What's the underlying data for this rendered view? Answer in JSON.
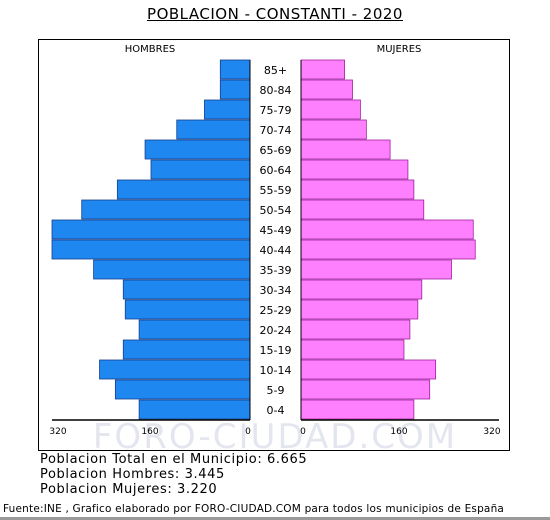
{
  "title": "POBLACION - CONSTANTI - 2020",
  "chart_data": {
    "type": "bar",
    "orientation": "horizontal",
    "categories": [
      "85+",
      "80-84",
      "75-79",
      "70-74",
      "65-69",
      "60-64",
      "55-59",
      "50-54",
      "45-49",
      "40-44",
      "35-39",
      "30-34",
      "25-29",
      "20-24",
      "15-19",
      "10-14",
      "5-9",
      "0-4"
    ],
    "series": [
      {
        "name": "HOMBRES",
        "color": "#1e87f0",
        "values": [
          15,
          15,
          23,
          37,
          53,
          50,
          67,
          85,
          100,
          100,
          79,
          64,
          63,
          56,
          64,
          76,
          68,
          56
        ]
      },
      {
        "name": "MUJERES",
        "color": "#ff80ff",
        "values": [
          22,
          26,
          30,
          33,
          45,
          54,
          57,
          62,
          87,
          88,
          76,
          61,
          59,
          55,
          52,
          68,
          65,
          57
        ]
      }
    ],
    "xlabel_left": "HOMBRES",
    "xlabel_right": "MUJERES",
    "tick_labels": [
      "320",
      "160",
      "0",
      "0",
      "160",
      "320"
    ],
    "watermark": "FORO-CIUDAD.COM",
    "legend": "none",
    "grid": false
  },
  "stats": {
    "total": "Poblacion Total en el Municipio: 6.665",
    "hombres": "Poblacion Hombres: 3.445",
    "mujeres": "Poblacion Mujeres: 3.220"
  },
  "source": "Fuente:INE , Grafico elaborado por FORO-CIUDAD.COM para todos los municipios de España"
}
